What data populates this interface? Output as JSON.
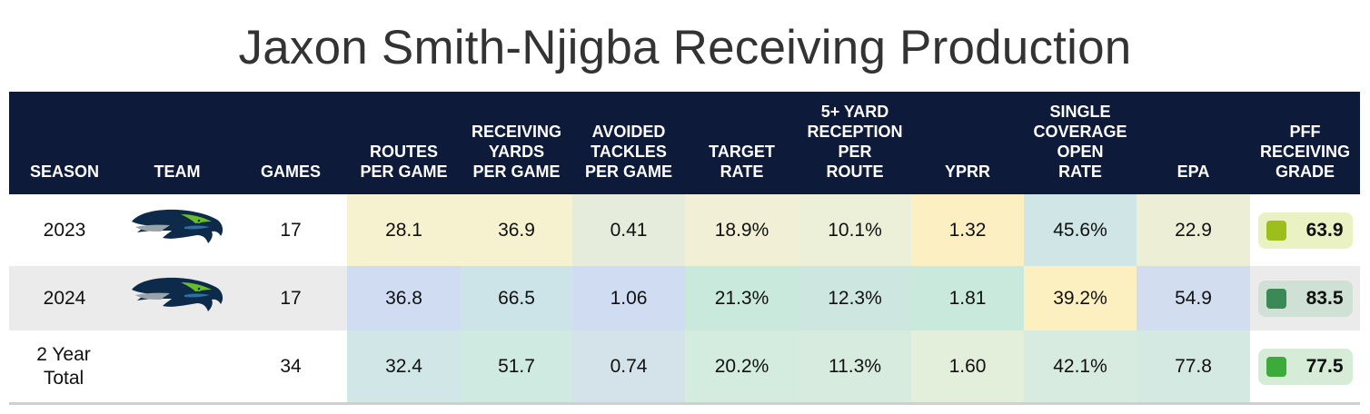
{
  "title": "Jaxon Smith-Njigba Receiving Production",
  "columns": [
    "SEASON",
    "TEAM",
    "GAMES",
    "ROUTES PER GAME",
    "RECEIVING YARDS PER GAME",
    "AVOIDED TACKLES PER GAME",
    "TARGET RATE",
    "5+ YARD RECEPTION PER ROUTE",
    "YPRR",
    "SINGLE COVERAGE OPEN RATE",
    "EPA",
    "PFF RECEIVING GRADE"
  ],
  "team_logo_icon": "seahawks-logo-icon",
  "rows": [
    {
      "season": "2023",
      "team_logo": true,
      "games": "17",
      "stats": [
        "28.1",
        "36.9",
        "0.41",
        "18.9%",
        "10.1%",
        "1.32",
        "45.6%",
        "22.9"
      ],
      "stat_colors": [
        "#f6f1cf",
        "#f6f1cf",
        "#e6ecdc",
        "#f1efd6",
        "#edf0d8",
        "#fcefc2",
        "#cfe5e6",
        "#ecefd6"
      ],
      "grade": "63.9",
      "grade_color": "#9cbf1b",
      "grade_bg": "#eaf2c4"
    },
    {
      "season": "2024",
      "team_logo": true,
      "games": "17",
      "stats": [
        "36.8",
        "66.5",
        "1.06",
        "21.3%",
        "12.3%",
        "1.81",
        "39.2%",
        "54.9"
      ],
      "stat_colors": [
        "#cfdcf1",
        "#cce4e8",
        "#cfdcf1",
        "#c9e9dc",
        "#cde6e0",
        "#c9e9dc",
        "#fcf0c1",
        "#d2ddf0"
      ],
      "grade": "83.5",
      "grade_color": "#3b8a55",
      "grade_bg": "#cfe0d4"
    },
    {
      "season": "2 Year Total",
      "team_logo": false,
      "games": "34",
      "stats": [
        "32.4",
        "51.7",
        "0.74",
        "20.2%",
        "11.3%",
        "1.60",
        "42.1%",
        "77.8"
      ],
      "stat_colors": [
        "#d1e6e6",
        "#cfeae0",
        "#d3e3e9",
        "#d4ebe0",
        "#d8ebdf",
        "#e4efdb",
        "#d8ebe0",
        "#d4e9e1"
      ],
      "grade": "77.5",
      "grade_color": "#3cab3c",
      "grade_bg": "#d6ecd6"
    }
  ],
  "colors": {
    "header_bg": "#0d1a3a",
    "title_text": "#333333",
    "row_alt_bg": "#ebebeb"
  },
  "chart_data": {
    "type": "table",
    "title": "Jaxon Smith-Njigba Receiving Production",
    "columns": [
      "SEASON",
      "TEAM",
      "GAMES",
      "ROUTES PER GAME",
      "RECEIVING YARDS PER GAME",
      "AVOIDED TACKLES PER GAME",
      "TARGET RATE",
      "5+ YARD RECEPTION PER ROUTE",
      "YPRR",
      "SINGLE COVERAGE OPEN RATE",
      "EPA",
      "PFF RECEIVING GRADE"
    ],
    "rows": [
      [
        "2023",
        "Seahawks",
        17,
        28.1,
        36.9,
        0.41,
        "18.9%",
        "10.1%",
        1.32,
        "45.6%",
        22.9,
        63.9
      ],
      [
        "2024",
        "Seahawks",
        17,
        36.8,
        66.5,
        1.06,
        "21.3%",
        "12.3%",
        1.81,
        "39.2%",
        54.9,
        83.5
      ],
      [
        "2 Year Total",
        "",
        34,
        32.4,
        51.7,
        0.74,
        "20.2%",
        "11.3%",
        1.6,
        "42.1%",
        77.8,
        77.5
      ]
    ]
  }
}
